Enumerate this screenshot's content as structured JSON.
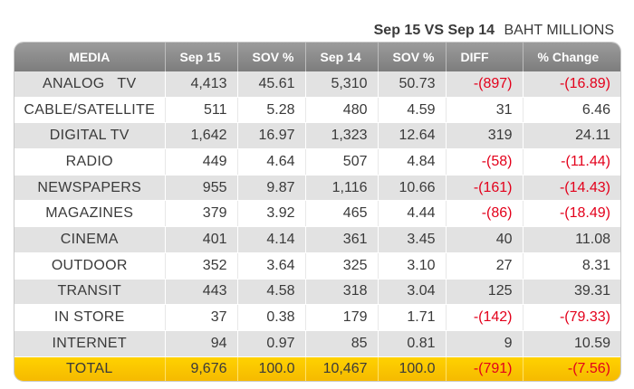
{
  "caption": {
    "comparison": "Sep 15 VS Sep 14",
    "unit": "BAHT MILLIONS"
  },
  "chart_data": {
    "type": "table",
    "columns": [
      "MEDIA",
      "Sep 15",
      "SOV %",
      "Sep 14",
      "SOV %",
      "DIFF",
      "% Change"
    ],
    "rows": [
      [
        "ANALOG   TV",
        "4,413",
        "45.61",
        "5,310",
        "50.73",
        "-(897)",
        "-(16.89)"
      ],
      [
        "CABLE/SATELLITE",
        "511",
        "5.28",
        "480",
        "4.59",
        "31",
        "6.46"
      ],
      [
        "DIGITAL TV",
        "1,642",
        "16.97",
        "1,323",
        "12.64",
        "319",
        "24.11"
      ],
      [
        "RADIO",
        "449",
        "4.64",
        "507",
        "4.84",
        "-(58)",
        "-(11.44)"
      ],
      [
        "NEWSPAPERS",
        "955",
        "9.87",
        "1,116",
        "10.66",
        "-(161)",
        "-(14.43)"
      ],
      [
        "MAGAZINES",
        "379",
        "3.92",
        "465",
        "4.44",
        "-(86)",
        "-(18.49)"
      ],
      [
        "CINEMA",
        "401",
        "4.14",
        "361",
        "3.45",
        "40",
        "11.08"
      ],
      [
        "OUTDOOR",
        "352",
        "3.64",
        "325",
        "3.10",
        "27",
        "8.31"
      ],
      [
        "TRANSIT",
        "443",
        "4.58",
        "318",
        "3.04",
        "125",
        "39.31"
      ],
      [
        "IN STORE",
        "37",
        "0.38",
        "179",
        "1.71",
        "-(142)",
        "-(79.33)"
      ],
      [
        "INTERNET",
        "94",
        "0.97",
        "85",
        "0.81",
        "9",
        "10.59"
      ]
    ],
    "total": [
      "TOTAL",
      "9,676",
      "100.0",
      "10,467",
      "100.0",
      "-(791)",
      "-(7.56)"
    ]
  },
  "colors": {
    "header_bg": "#8c8c8c",
    "stripe_bg": "#e2e2e2",
    "total_bg": "#f9c700",
    "negative_text": "#e3001b"
  }
}
